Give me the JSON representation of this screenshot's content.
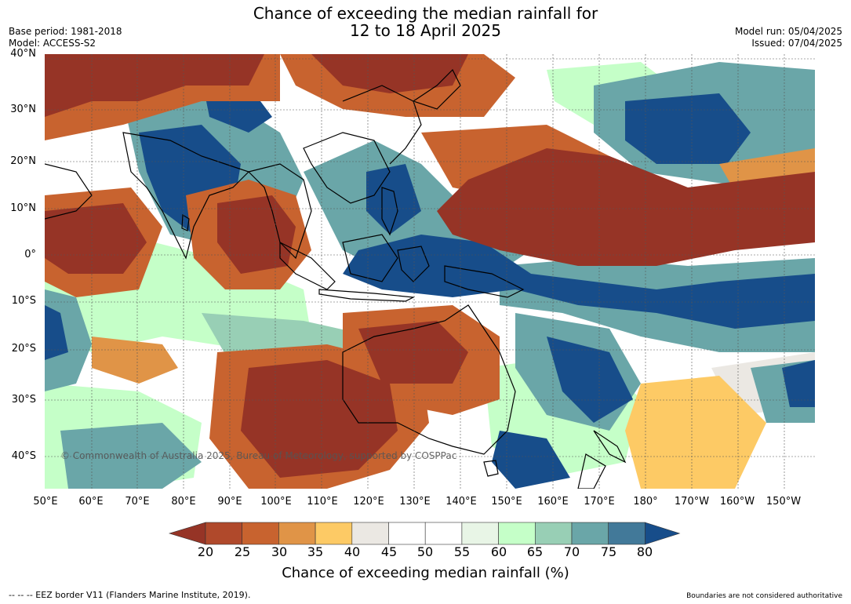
{
  "title_line1": "Chance of exceeding the median rainfall for",
  "title_line2": "12 to 18 April 2025",
  "base_period": "Base period: 1981-2018",
  "model": "Model: ACCESS-S2",
  "model_run": "Model run: 05/04/2025",
  "issued": "Issued: 07/04/2025",
  "copyright": "© Commonwealth of Australia 2025, Bureau of Meteorology, supported by COSPPac",
  "lat_labels": [
    "40°N",
    "30°N",
    "20°N",
    "10°N",
    "0°",
    "10°S",
    "20°S",
    "30°S",
    "40°S"
  ],
  "lon_labels": [
    "50°E",
    "60°E",
    "70°E",
    "80°E",
    "90°E",
    "100°E",
    "110°E",
    "120°E",
    "130°E",
    "140°E",
    "150°E",
    "160°E",
    "170°E",
    "180°",
    "170°W",
    "160°W",
    "150°W"
  ],
  "colorbar": {
    "ticks": [
      "20",
      "25",
      "30",
      "35",
      "40",
      "45",
      "50",
      "55",
      "60",
      "65",
      "70",
      "75",
      "80"
    ],
    "colors": [
      "#963426",
      "#b0492b",
      "#c8632f",
      "#e09447",
      "#fdca65",
      "#ebe8e3",
      "#ffffff",
      "#ffffff",
      "#e8f5e6",
      "#c5ffc8",
      "#98cfb5",
      "#6aa6a8",
      "#427999",
      "#174d8a"
    ],
    "label": "Chance of exceeding median rainfall (%)"
  },
  "footer_left": "--  --  -- EEZ border V11 (Flanders Marine Institute, 2019).",
  "footer_right": "Boundaries are not considered authoritative"
}
